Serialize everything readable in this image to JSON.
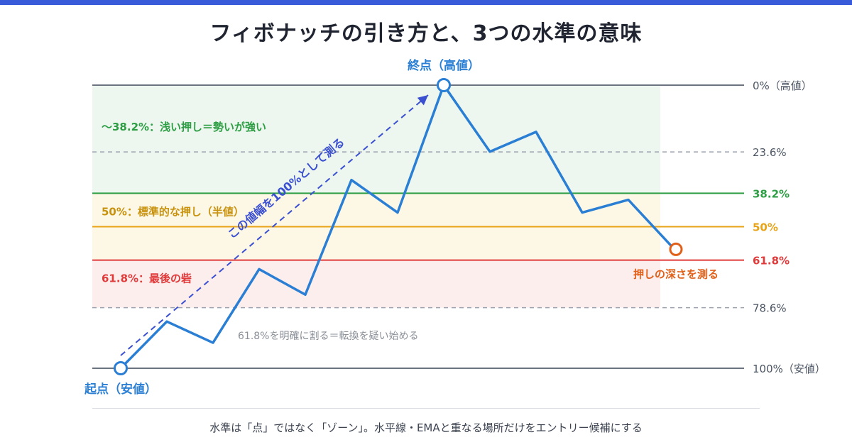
{
  "title": "フィボナッチの引き方と、3つの水準の意味",
  "start_point_label": "起点（安値）",
  "end_point_label": "終点（高値）",
  "arrow_label": "この値幅を100%として測る",
  "retrace_label": "押しの深さを測る",
  "break_note": "61.8%を明確に割る＝転換を疑い始める",
  "levels": [
    {
      "label": "0%（高値）",
      "ratio": 0.0,
      "style": "solid",
      "color": "#6b7280"
    },
    {
      "label": "23.6%",
      "ratio": 0.236,
      "style": "dashed",
      "color": "#9ca3af"
    },
    {
      "label": "38.2%",
      "ratio": 0.382,
      "style": "solid",
      "color": "#2e9e44"
    },
    {
      "label": "50%",
      "ratio": 0.5,
      "style": "solid",
      "color": "#e8a317"
    },
    {
      "label": "61.8%",
      "ratio": 0.618,
      "style": "solid",
      "color": "#e03a3a"
    },
    {
      "label": "78.6%",
      "ratio": 0.786,
      "style": "dashed",
      "color": "#9ca3af"
    },
    {
      "label": "100%（安値）",
      "ratio": 1.0,
      "style": "solid",
      "color": "#6b7280"
    }
  ],
  "zones": [
    {
      "text": "〜38.2%：浅い押し＝勢いが強い",
      "from": 0.0,
      "to": 0.382,
      "fill": "#edf7f0",
      "color": "#2e9e44"
    },
    {
      "text": "50%：標準的な押し（半値）",
      "from": 0.382,
      "to": 0.618,
      "fill": "#fdf8e6",
      "color": "#c8920e"
    },
    {
      "text": "61.8%：最後の砦",
      "from": 0.618,
      "to": 0.786,
      "fill": "#fdeeee",
      "color": "#e03a3a"
    }
  ],
  "price_path": [
    {
      "t": 0,
      "ratio": 1.0
    },
    {
      "t": 1,
      "ratio": 0.835
    },
    {
      "t": 2,
      "ratio": 0.91
    },
    {
      "t": 3,
      "ratio": 0.65
    },
    {
      "t": 4,
      "ratio": 0.74
    },
    {
      "t": 5,
      "ratio": 0.335
    },
    {
      "t": 6,
      "ratio": 0.45
    },
    {
      "t": 7,
      "ratio": 0.0
    },
    {
      "t": 8,
      "ratio": 0.235
    },
    {
      "t": 9,
      "ratio": 0.165
    },
    {
      "t": 10,
      "ratio": 0.45
    },
    {
      "t": 11,
      "ratio": 0.405
    },
    {
      "t": 12,
      "ratio": 0.58
    }
  ],
  "colors": {
    "price_line": "#2a7fd4",
    "arrow": "#3b50d0",
    "end_label": "#2a7fd4",
    "retrace_marker": "#e0601a",
    "break_note": "#8a8f98"
  },
  "footer_note": "水準は「点」ではなく「ゾーン」。水平線・EMAと重なる場所だけをエントリー候補にする"
}
